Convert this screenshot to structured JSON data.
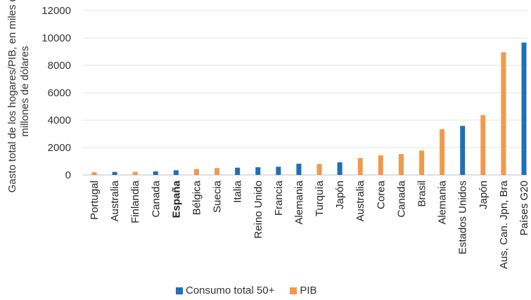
{
  "chart_data": {
    "type": "bar",
    "ylabel": "Gasto total de los hogares/PIB, en miles de millones de dólares",
    "ylim": [
      0,
      12000
    ],
    "yticks": [
      "0",
      "2000",
      "4000",
      "6000",
      "8000",
      "10000",
      "12000"
    ],
    "grid": true,
    "legend_position": "bottom",
    "colors": {
      "consumo": "#1f6fb5",
      "pib": "#f2994a"
    },
    "series": [
      {
        "name": "Consumo total 50+",
        "color_key": "consumo"
      },
      {
        "name": "PIB",
        "color_key": "pib"
      }
    ],
    "bars": [
      {
        "label": "Portugal",
        "value": 200,
        "series": "pib",
        "bold": false
      },
      {
        "label": "Australia",
        "value": 220,
        "series": "consumo",
        "bold": false
      },
      {
        "label": "Finlandia",
        "value": 230,
        "series": "pib",
        "bold": false
      },
      {
        "label": "Canada",
        "value": 260,
        "series": "consumo",
        "bold": false
      },
      {
        "label": "España",
        "value": 340,
        "series": "consumo",
        "bold": true
      },
      {
        "label": "Bélgica",
        "value": 430,
        "series": "pib",
        "bold": false
      },
      {
        "label": "Suecia",
        "value": 500,
        "series": "pib",
        "bold": false
      },
      {
        "label": "Italia",
        "value": 530,
        "series": "consumo",
        "bold": false
      },
      {
        "label": "Reino Unido",
        "value": 560,
        "series": "consumo",
        "bold": false
      },
      {
        "label": "Francia",
        "value": 600,
        "series": "consumo",
        "bold": false
      },
      {
        "label": "Alemania",
        "value": 820,
        "series": "consumo",
        "bold": false
      },
      {
        "label": "Turquía",
        "value": 800,
        "series": "pib",
        "bold": false
      },
      {
        "label": "Japón",
        "value": 920,
        "series": "consumo",
        "bold": false
      },
      {
        "label": "Australia",
        "value": 1230,
        "series": "pib",
        "bold": false
      },
      {
        "label": "Corea",
        "value": 1430,
        "series": "pib",
        "bold": false
      },
      {
        "label": "Canada",
        "value": 1530,
        "series": "pib",
        "bold": false
      },
      {
        "label": "Brasil",
        "value": 1780,
        "series": "pib",
        "bold": false
      },
      {
        "label": "Alemania",
        "value": 3340,
        "series": "pib",
        "bold": false
      },
      {
        "label": "Estados Unidos",
        "value": 3580,
        "series": "consumo",
        "bold": false
      },
      {
        "label": "Japón",
        "value": 4360,
        "series": "pib",
        "bold": false
      },
      {
        "label": "Aus, Can. Jpn, Bra",
        "value": 8960,
        "series": "pib",
        "bold": false
      },
      {
        "label": "Países G20",
        "value": 9660,
        "series": "consumo",
        "bold": false
      }
    ]
  }
}
